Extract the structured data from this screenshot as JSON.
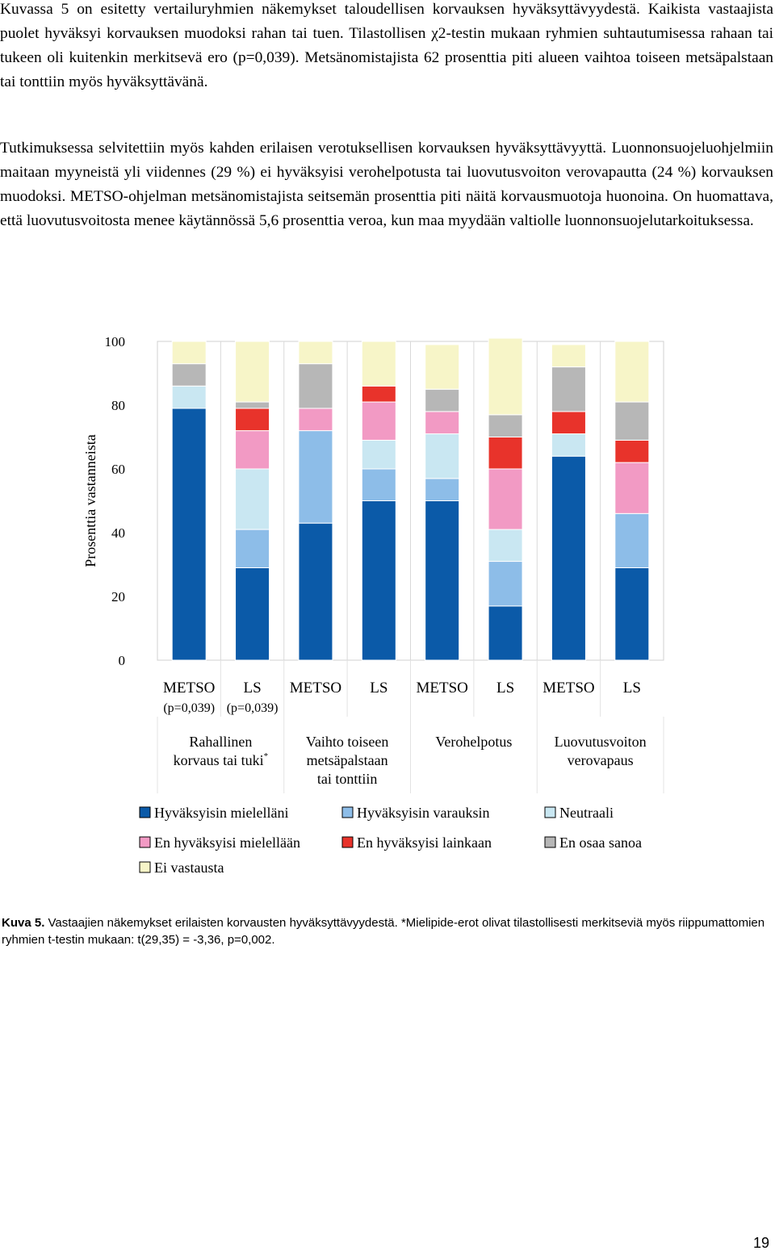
{
  "paragraphs": [
    "Kuvassa 5 on esitetty vertailuryhmien näkemykset taloudellisen korvauksen hyväksyttävyydestä. Kaikista vastaajista puolet hyväksyi korvauksen muodoksi rahan tai tuen. Tilastollisen χ2-testin mukaan ryhmien suhtautumisessa rahaan tai tukeen oli kuitenkin merkitsevä ero (p=0,039). Metsänomistajista 62 prosenttia piti alueen vaihtoa toiseen metsäpalstaan tai tonttiin myös hyväksyttävänä.",
    "Tutkimuksessa selvitettiin myös kahden erilaisen verotuksellisen korvauksen hyväksyttävyyttä. Luonnonsuojeluohjelmiin maitaan myyneistä yli viidennes (29 %) ei hyväksyisi verohelpotusta tai luovutusvoiton verovapautta (24 %) korvauksen muodoksi. METSO-ohjelman metsänomistajista seitsemän prosenttia piti näitä korvausmuotoja huonoina. On huomattava, että luovutusvoitosta menee käytännössä 5,6 prosenttia veroa, kun maa myydään valtiolle luonnonsuojelutarkoituksessa."
  ],
  "chart_data": {
    "type": "stacked-bar",
    "ylabel": "Prosenttia vastanneista",
    "ylim": [
      0,
      100
    ],
    "yticks": [
      0,
      20,
      40,
      60,
      80,
      100
    ],
    "bars": [
      {
        "label": "METSO",
        "sublabel": "(p=0,039)"
      },
      {
        "label": "LS",
        "sublabel": "(p=0,039)"
      },
      {
        "label": "METSO",
        "sublabel": ""
      },
      {
        "label": "LS",
        "sublabel": ""
      },
      {
        "label": "METSO",
        "sublabel": ""
      },
      {
        "label": "LS",
        "sublabel": ""
      },
      {
        "label": "METSO",
        "sublabel": ""
      },
      {
        "label": "LS",
        "sublabel": ""
      }
    ],
    "groups": [
      {
        "lines": [
          "Rahallinen",
          "korvaus tai tuki"
        ],
        "note": "*"
      },
      {
        "lines": [
          "Vaihto toiseen",
          "metsäpalstaan",
          "tai tonttiin"
        ],
        "note": ""
      },
      {
        "lines": [
          "Verohelpotus"
        ],
        "note": ""
      },
      {
        "lines": [
          "Luovutusvoiton",
          "verovapaus"
        ],
        "note": ""
      }
    ],
    "series": [
      {
        "name": "Hyväksyisin mielelläni",
        "color": "#0b5aa8",
        "values": [
          79,
          29,
          43,
          50,
          50,
          17,
          64,
          29
        ]
      },
      {
        "name": "Hyväksyisin varauksin",
        "color": "#8dbde8",
        "values": [
          0,
          12,
          29,
          10,
          7,
          14,
          0,
          17
        ]
      },
      {
        "name": "Neutraali",
        "color": "#c9e7f2",
        "values": [
          7,
          19,
          0,
          9,
          14,
          10,
          7,
          0
        ]
      },
      {
        "name": "En hyväksyisi mielellään",
        "color": "#f29ac4",
        "values": [
          0,
          12,
          7,
          12,
          7,
          19,
          0,
          16
        ]
      },
      {
        "name": "En hyväksyisi lainkaan",
        "color": "#e8332b",
        "values": [
          0,
          7,
          0,
          5,
          0,
          10,
          7,
          7
        ]
      },
      {
        "name": "En osaa sanoa",
        "color": "#b7b7b7",
        "values": [
          7,
          2,
          14,
          0,
          7,
          7,
          14,
          12
        ]
      },
      {
        "name": "Ei vastausta",
        "color": "#f7f5c8",
        "values": [
          7,
          19,
          7,
          14,
          14,
          24,
          7,
          19
        ]
      }
    ]
  },
  "caption": {
    "label": "Kuva 5.",
    "text": " Vastaajien näkemykset erilaisten korvausten hyväksyttävyydestä. *Mielipide-erot olivat tilastollisesti merkitseviä myös riippumattomien ryhmien t-testin mukaan: t(29,35) = -3,36, p=0,002."
  },
  "page_number": "19"
}
